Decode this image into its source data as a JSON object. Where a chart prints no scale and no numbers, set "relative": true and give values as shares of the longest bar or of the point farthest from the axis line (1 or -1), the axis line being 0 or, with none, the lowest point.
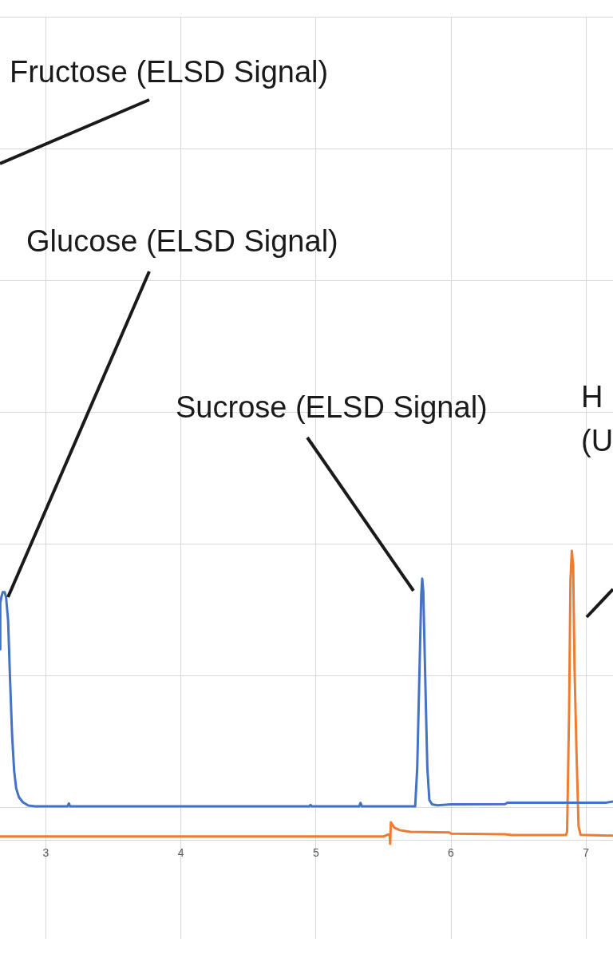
{
  "chart_data": {
    "type": "line",
    "relative": true,
    "grid": true,
    "legend": false,
    "marker": "none",
    "line_style": "solid",
    "xlim": [
      2.66,
      7.2
    ],
    "xticks": [
      3,
      4,
      5,
      6,
      7
    ],
    "annotations": [
      "Fructose (ELSD Signal)",
      "Glucose (ELSD Signal)",
      "Sucrose (ELSD Signal)",
      "H\n(U"
    ],
    "series": [
      {
        "color": "#4472c4",
        "x": [
          2.66,
          2.662,
          2.67,
          2.68,
          2.695,
          2.705,
          2.72,
          2.735,
          2.75,
          2.765,
          2.78,
          2.8,
          2.83,
          2.87,
          2.92,
          3.16,
          3.17,
          3.18,
          4.95,
          4.96,
          4.97,
          5.32,
          5.33,
          5.34,
          5.735,
          5.75,
          5.765,
          5.78,
          5.787,
          5.795,
          5.81,
          5.825,
          5.84,
          5.86,
          5.9,
          6.0,
          6.4,
          6.42,
          7.15,
          7.2
        ],
        "values": [
          0.66,
          0.82,
          0.84,
          0.857,
          0.857,
          0.84,
          0.76,
          0.55,
          0.36,
          0.24,
          0.18,
          0.15,
          0.132,
          0.121,
          0.118,
          0.118,
          0.128,
          0.118,
          0.118,
          0.123,
          0.118,
          0.118,
          0.13,
          0.118,
          0.118,
          0.25,
          0.55,
          0.85,
          0.904,
          0.86,
          0.55,
          0.25,
          0.14,
          0.125,
          0.122,
          0.125,
          0.126,
          0.131,
          0.131,
          0.135
        ]
      },
      {
        "color": "#ed7d31",
        "x": [
          2.66,
          5.5,
          5.53,
          5.545,
          5.55,
          5.555,
          5.58,
          5.62,
          5.7,
          5.99,
          6.0,
          6.4,
          6.45,
          6.85,
          6.86,
          6.875,
          6.885,
          6.895,
          6.905,
          6.915,
          6.93,
          6.945,
          6.96,
          7.2
        ],
        "values": [
          0.014,
          0.014,
          0.02,
          0.022,
          -0.011,
          0.063,
          0.045,
          0.036,
          0.03,
          0.028,
          0.024,
          0.022,
          0.019,
          0.019,
          0.03,
          0.45,
          0.9,
          1.0,
          0.95,
          0.6,
          0.3,
          0.05,
          0.02,
          0.017
        ]
      }
    ]
  }
}
